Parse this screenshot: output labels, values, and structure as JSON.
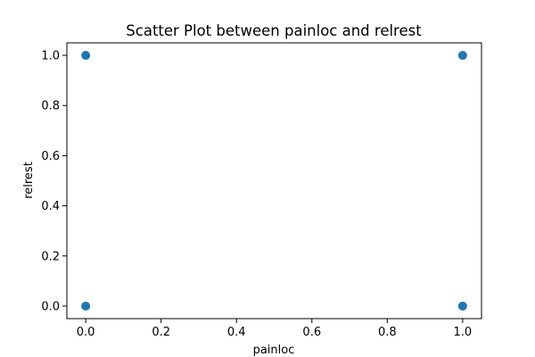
{
  "chart_data": {
    "type": "scatter",
    "title": "Scatter Plot between painloc and relrest",
    "xlabel": "painloc",
    "ylabel": "relrest",
    "xlim": [
      -0.05,
      1.05
    ],
    "ylim": [
      -0.05,
      1.05
    ],
    "xticks": [
      0.0,
      0.2,
      0.4,
      0.6,
      0.8,
      1.0
    ],
    "xtick_labels": [
      "0.0",
      "0.2",
      "0.4",
      "0.6",
      "0.8",
      "1.0"
    ],
    "yticks": [
      0.0,
      0.2,
      0.4,
      0.6,
      0.8,
      1.0
    ],
    "ytick_labels": [
      "0.0",
      "0.2",
      "0.4",
      "0.6",
      "0.8",
      "1.0"
    ],
    "grid": false,
    "marker_color": "#1f77b4",
    "points": [
      {
        "x": 0,
        "y": 1
      },
      {
        "x": 0,
        "y": 0
      },
      {
        "x": 1,
        "y": 1
      },
      {
        "x": 1,
        "y": 0
      }
    ]
  }
}
